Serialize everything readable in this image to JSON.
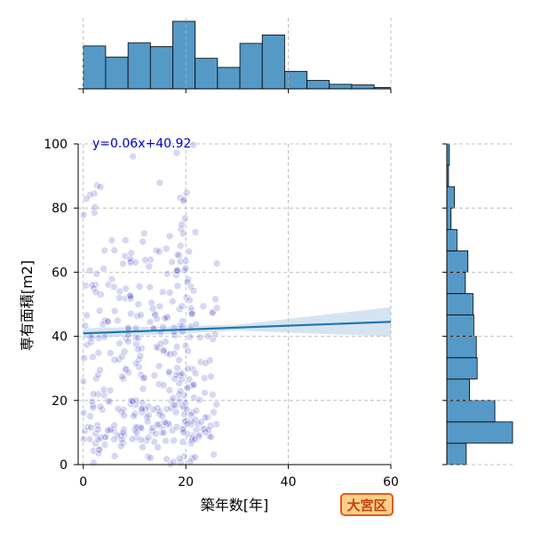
{
  "chart_data": {
    "type": "scatter",
    "title": "",
    "xlabel": "築年数[年]",
    "ylabel": "専有面積[m2]",
    "xlim": [
      -1,
      60
    ],
    "ylim": [
      0,
      100
    ],
    "x_ticks": [
      0,
      20,
      40,
      60
    ],
    "y_ticks": [
      0,
      20,
      40,
      60,
      80,
      100
    ],
    "grid": true,
    "regression": {
      "label": "y=0.06x+40.92",
      "slope": 0.06,
      "intercept": 40.92,
      "color": "#1f77b4",
      "band_color": "#aec9e3"
    },
    "point_color": "#4a4ac8",
    "bar_color": "#5599c7",
    "annotation": "大宮区",
    "points": [],
    "x_histogram": {
      "bin_edges": [
        0,
        4.36,
        8.73,
        13.09,
        17.45,
        21.82,
        26.18,
        30.55,
        34.91,
        39.27,
        43.64,
        48,
        52.36,
        56.73,
        60
      ],
      "counts": [
        66,
        49,
        71,
        65,
        104,
        47,
        33,
        70,
        83,
        27,
        13,
        7,
        6,
        2
      ]
    },
    "y_histogram": {
      "bin_edges": [
        0,
        6.67,
        13.33,
        20,
        26.67,
        33.33,
        40,
        46.67,
        53.33,
        60,
        66.67,
        73.33,
        80,
        86.67,
        93.33,
        100
      ],
      "counts": [
        23,
        78,
        57,
        27,
        36,
        35,
        32,
        31,
        22,
        25,
        12,
        5,
        9,
        2,
        3
      ]
    }
  }
}
